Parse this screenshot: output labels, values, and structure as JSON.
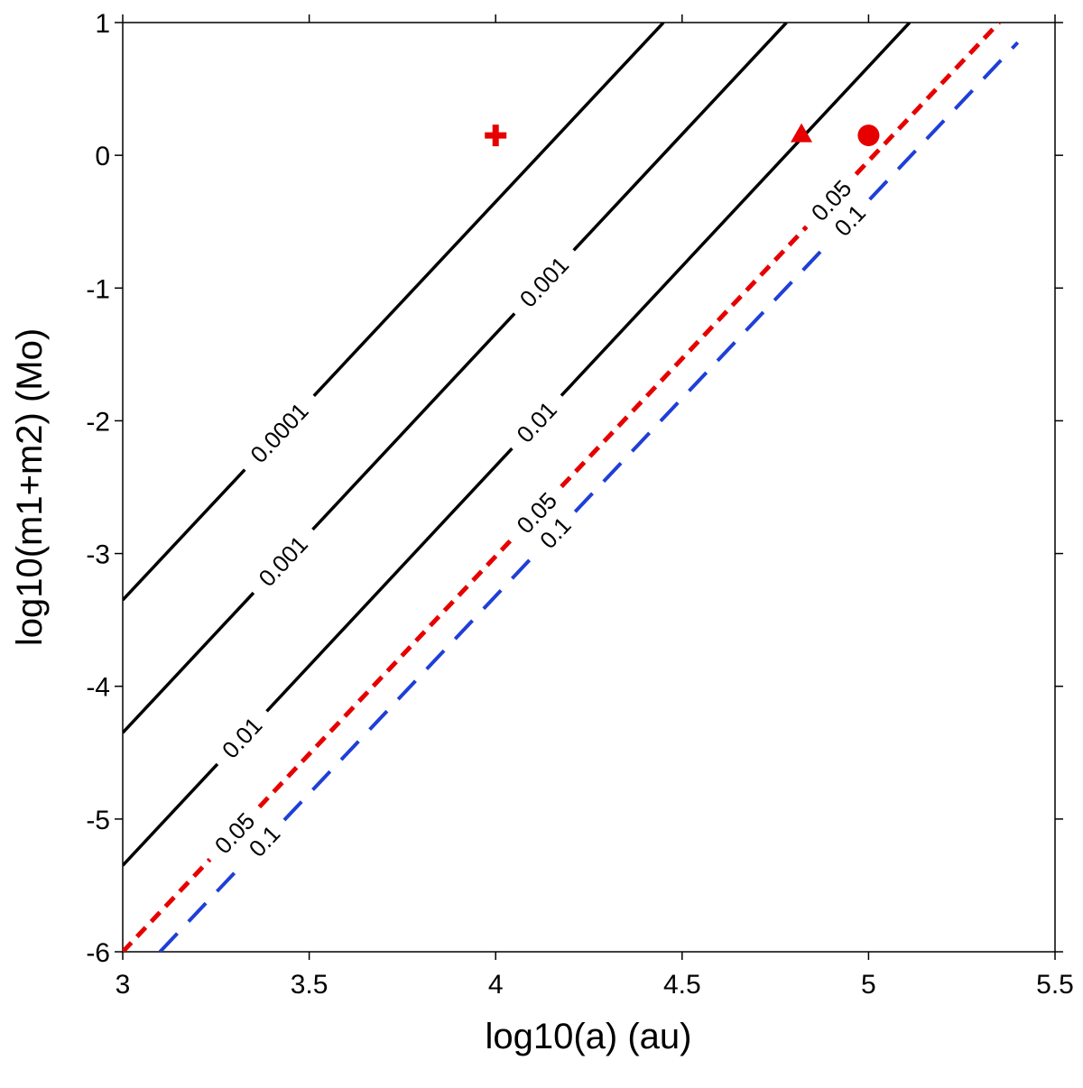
{
  "chart_data": {
    "type": "line",
    "xlabel": "log10(a) (au)",
    "ylabel": "log10(m1+m2) (Mo)",
    "xlim": [
      3,
      5.5
    ],
    "ylim": [
      -6,
      1
    ],
    "xticks": [
      3,
      3.5,
      4,
      4.5,
      5,
      5.5
    ],
    "xtick_labels": [
      "3",
      "3.5",
      "4",
      "4.5",
      "5",
      "5.5"
    ],
    "yticks": [
      1,
      0,
      -1,
      -2,
      -3,
      -4,
      -5,
      -6
    ],
    "ytick_labels": [
      "1",
      "0",
      "-1",
      "-2",
      "-3",
      "-4",
      "-5",
      "-6"
    ],
    "series": [
      {
        "name": "0.0001",
        "style": "solid",
        "color": "#000000",
        "x": [
          3.0,
          4.45
        ],
        "y": [
          -3.35,
          1.0
        ],
        "labels": [
          {
            "text": "0.0001",
            "x": 3.42
          }
        ]
      },
      {
        "name": "0.001",
        "style": "solid",
        "color": "#000000",
        "x": [
          3.0,
          4.78
        ],
        "y": [
          -4.35,
          1.0
        ],
        "labels": [
          {
            "text": "0.001",
            "x": 3.43
          },
          {
            "text": "0.001",
            "x": 4.13
          }
        ]
      },
      {
        "name": "0.01",
        "style": "solid",
        "color": "#000000",
        "x": [
          3.0,
          5.11
        ],
        "y": [
          -5.35,
          1.0
        ],
        "labels": [
          {
            "text": "0.01",
            "x": 3.32
          },
          {
            "text": "0.01",
            "x": 4.11
          }
        ]
      },
      {
        "name": "0.05",
        "style": "dotted",
        "color": "#e60000",
        "x": [
          3.0,
          5.35
        ],
        "y": [
          -6.0,
          1.0
        ],
        "labels": [
          {
            "text": "0.05",
            "x": 3.3
          },
          {
            "text": "0.05",
            "x": 4.11
          },
          {
            "text": "0.05",
            "x": 4.9
          }
        ]
      },
      {
        "name": "0.1",
        "style": "dashed",
        "color": "#1f3fd6",
        "x": [
          3.1,
          5.4
        ],
        "y": [
          -6.0,
          0.85
        ],
        "labels": [
          {
            "text": "0.1",
            "x": 3.38
          },
          {
            "text": "0.1",
            "x": 4.16
          },
          {
            "text": "0.1",
            "x": 4.95
          }
        ]
      }
    ],
    "markers": [
      {
        "shape": "cross",
        "x": 4.0,
        "y": 0.15,
        "color": "#e60000"
      },
      {
        "shape": "triangle",
        "x": 4.82,
        "y": 0.16,
        "color": "#e60000"
      },
      {
        "shape": "circle",
        "x": 5.0,
        "y": 0.15,
        "color": "#e60000"
      }
    ]
  }
}
